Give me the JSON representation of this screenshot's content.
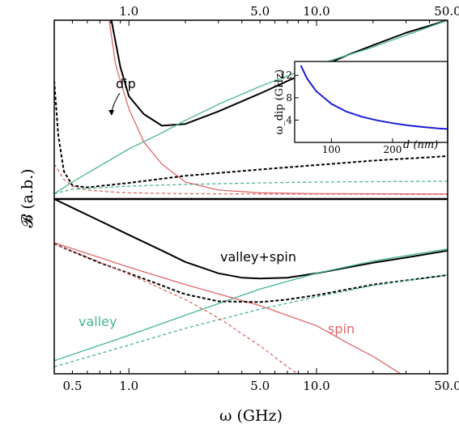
{
  "chart_data": [
    {
      "id": "top",
      "type": "line",
      "x_axis_label": "ω (GHz)",
      "y_axis_label": "𝓑 (a.b.)",
      "x_scale": "log",
      "xlim": [
        0.4,
        50
      ],
      "ylim": [
        0,
        10
      ],
      "top_tick_labels": [
        "1.0",
        "5.0",
        "10.0",
        "50.0"
      ],
      "top_tick_values": [
        1.0,
        5.0,
        10.0,
        50.0
      ],
      "annotation": "dip",
      "series": [
        {
          "style": "solid",
          "color": "#000000",
          "x": [
            0.8,
            0.9,
            1.0,
            1.2,
            1.5,
            2.0,
            3.0,
            5.0,
            7.0,
            10.0,
            15.0,
            20.0,
            30.0,
            50.0
          ],
          "y": [
            10.2,
            7.4,
            5.75,
            4.75,
            4.1,
            4.2,
            4.9,
            5.9,
            6.6,
            7.3,
            8.1,
            8.6,
            9.3,
            10.0
          ]
        },
        {
          "style": "solid",
          "color": "#44b68c",
          "x": [
            0.4,
            0.5,
            0.7,
            1.0,
            1.5,
            2.0,
            3.0,
            5.0,
            10.0,
            20.0,
            50.0
          ],
          "y": [
            0.3,
            0.95,
            1.85,
            2.8,
            3.7,
            4.4,
            5.3,
            6.3,
            7.5,
            8.5,
            10.0
          ]
        },
        {
          "style": "solid",
          "color": "#e0676b",
          "x": [
            0.78,
            0.85,
            1.0,
            1.2,
            1.5,
            2.0,
            3.0,
            5.0,
            10.0,
            50.0
          ],
          "y": [
            10.2,
            7.5,
            5.05,
            3.2,
            1.95,
            0.95,
            0.5,
            0.35,
            0.3,
            0.28
          ]
        },
        {
          "style": "dashed",
          "color": "#000000",
          "x": [
            0.4,
            0.42,
            0.45,
            0.5,
            0.6,
            1.0,
            2.0,
            5.0,
            10.0,
            20.0,
            50.0
          ],
          "y": [
            6.6,
            3.6,
            1.55,
            0.75,
            0.65,
            0.9,
            1.3,
            1.65,
            1.9,
            2.15,
            2.4
          ]
        },
        {
          "style": "dashed",
          "color": "#44b68c",
          "x": [
            0.4,
            0.5,
            1.0,
            2.0,
            5.0,
            10.0,
            50.0
          ],
          "y": [
            0.3,
            0.55,
            0.72,
            0.82,
            0.9,
            0.95,
            1.0
          ]
        },
        {
          "style": "dashed",
          "color": "#e0676b",
          "x": [
            0.4,
            0.45,
            0.5,
            0.6,
            0.8,
            1.0,
            2.0,
            5.0,
            50.0
          ],
          "y": [
            1.95,
            1.1,
            0.7,
            0.5,
            0.4,
            0.35,
            0.3,
            0.28,
            0.26
          ]
        }
      ],
      "inset": {
        "type": "line",
        "x_axis_label": "d (nm)",
        "y_axis_label": "ω_dip (GHz)",
        "xlim": [
          40,
          290
        ],
        "ylim": [
          0,
          14.5
        ],
        "x_ticks": [
          100,
          200
        ],
        "y_ticks": [
          4,
          8,
          12
        ],
        "series": [
          {
            "color": "#1c1cd8",
            "x": [
              50,
              60,
              75,
              100,
              125,
              150,
              175,
              200,
              225,
              250,
              275,
              290
            ],
            "y": [
              13.8,
              11.5,
              9.2,
              6.9,
              5.5,
              4.6,
              3.95,
              3.45,
              3.05,
              2.75,
              2.5,
              2.4
            ]
          }
        ]
      }
    },
    {
      "id": "bottom",
      "type": "line",
      "x_scale": "log",
      "xlim": [
        0.4,
        50
      ],
      "ylim": [
        0,
        10
      ],
      "x_tick_labels": [
        "0.5",
        "1.0",
        "5.0",
        "10.0",
        "50.0"
      ],
      "x_tick_values": [
        0.5,
        1.0,
        5.0,
        10.0,
        50.0
      ],
      "labels": {
        "sum": "valley+spin",
        "valley": "valley",
        "spin": "spin"
      },
      "series": [
        {
          "style": "solid",
          "color": "#000000",
          "x": [
            0.4,
            0.5,
            0.7,
            1.0,
            1.5,
            2.0,
            3.0,
            4.0,
            5.0,
            7.0,
            10.0,
            15.0,
            20.0,
            30.0,
            50.0
          ],
          "y": [
            10.0,
            9.5,
            8.75,
            7.95,
            7.05,
            6.4,
            5.75,
            5.5,
            5.45,
            5.5,
            5.75,
            6.1,
            6.35,
            6.65,
            7.05
          ]
        },
        {
          "style": "solid",
          "color": "#44b68c",
          "x": [
            0.4,
            1.0,
            2.0,
            5.0,
            10.0,
            20.0,
            50.0
          ],
          "y": [
            0.75,
            2.2,
            3.35,
            4.85,
            5.75,
            6.45,
            7.15
          ]
        },
        {
          "style": "solid",
          "color": "#e0676b",
          "x": [
            0.4,
            1.0,
            2.0,
            5.0,
            10.0,
            15.0,
            20.0,
            30.0
          ],
          "y": [
            7.5,
            6.1,
            5.1,
            3.9,
            2.75,
            1.7,
            1.0,
            -0.2
          ]
        },
        {
          "style": "dashed",
          "color": "#000000",
          "x": [
            0.4,
            0.5,
            0.7,
            1.0,
            1.5,
            2.0,
            3.0,
            5.0,
            7.0,
            10.0,
            20.0,
            50.0
          ],
          "y": [
            7.45,
            7.0,
            6.35,
            5.75,
            5.05,
            4.55,
            4.15,
            4.1,
            4.25,
            4.5,
            5.1,
            5.65
          ]
        },
        {
          "style": "dashed",
          "color": "#44b68c",
          "x": [
            0.4,
            1.0,
            2.0,
            5.0,
            10.0,
            20.0,
            50.0
          ],
          "y": [
            0.4,
            1.65,
            2.6,
            3.7,
            4.4,
            5.05,
            5.65
          ]
        },
        {
          "style": "dashed",
          "color": "#e0676b",
          "x": [
            0.4,
            1.0,
            2.0,
            3.0,
            5.0,
            7.0,
            9.0
          ],
          "y": [
            7.45,
            5.7,
            4.25,
            3.2,
            1.6,
            0.4,
            -0.4
          ]
        }
      ]
    }
  ]
}
